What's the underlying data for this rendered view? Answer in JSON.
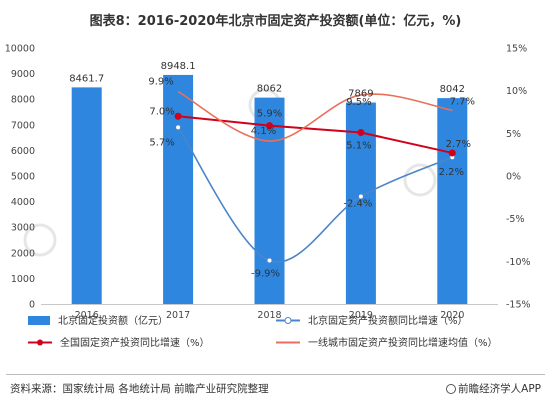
{
  "page": {
    "source_note": "资料来源：国家统计局 各地统计局 前瞻产业研究院整理",
    "publisher": "前瞻经济学人APP"
  },
  "chart_data": {
    "type": "bar",
    "title": "图表8：2016-2020年北京市固定资产投资额(单位：亿元，%)",
    "categories": [
      "2016",
      "2017",
      "2018",
      "2019",
      "2020"
    ],
    "left_axis": {
      "ylim": [
        0,
        10000
      ],
      "ticks": [
        "0",
        "1000",
        "2000",
        "3000",
        "4000",
        "5000",
        "6000",
        "7000",
        "8000",
        "9000",
        "10000"
      ]
    },
    "right_axis": {
      "ylim": [
        -15,
        15
      ],
      "ticks": [
        "-15%",
        "-10%",
        "-5%",
        "0%",
        "5%",
        "10%",
        "15%"
      ]
    },
    "grid": false,
    "legend_position": "bottom",
    "bar_series": {
      "name": "北京固定投资额（亿元）",
      "values": [
        8461.7,
        8948.1,
        8062,
        7869,
        8042
      ],
      "labels": [
        "8461.7",
        "8948.1",
        "8062",
        "7869",
        "8042"
      ],
      "color": "#2e86de"
    },
    "line_series": [
      {
        "name": "北京固定资产投资额同比增速（%）",
        "x": [
          "2017",
          "2018",
          "2019",
          "2020"
        ],
        "values": [
          5.7,
          -9.9,
          -2.4,
          2.2
        ],
        "labels": [
          "5.7%",
          "-9.9%",
          "-2.4%",
          "2.2%"
        ],
        "color": "#4a86c8",
        "smooth": true,
        "marker": "hollow"
      },
      {
        "name": "全国固定资产投资同比增速（%）",
        "x": [
          "2017",
          "2018",
          "2019",
          "2020"
        ],
        "values": [
          7.0,
          5.9,
          5.1,
          2.7
        ],
        "labels": [
          "7.0%",
          "5.9%",
          "5.1%",
          "2.7%"
        ],
        "color": "#d0021b",
        "smooth": false,
        "marker": "filled"
      },
      {
        "name": "一线城市固定资产投资同比增速均值（%）",
        "x": [
          "2017",
          "2018",
          "2019",
          "2020"
        ],
        "values": [
          9.9,
          4.1,
          9.5,
          7.7
        ],
        "labels": [
          "9.9%",
          "4.1%",
          "9.5%",
          "7.7%"
        ],
        "color": "#e8705a",
        "smooth": true,
        "marker": "none"
      }
    ]
  }
}
